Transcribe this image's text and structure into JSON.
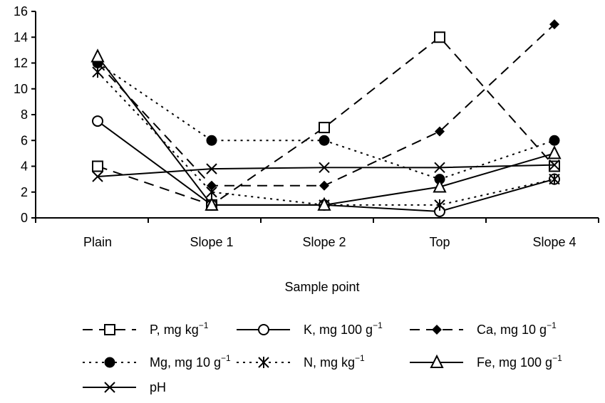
{
  "chart_data": {
    "type": "line",
    "title": "",
    "xlabel": "Sample point",
    "ylabel": "",
    "categories": [
      "Plain",
      "Slope 1",
      "Slope 2",
      "Top",
      "Slope 4"
    ],
    "ylim": [
      0,
      16
    ],
    "yticks": [
      0,
      2,
      4,
      6,
      8,
      10,
      12,
      14,
      16
    ],
    "grid": false,
    "legend_position": "bottom",
    "series": [
      {
        "name": "P, mg kg",
        "sup": "−1",
        "marker": "square-open",
        "line": "dash",
        "values": [
          4,
          1,
          7,
          14,
          4
        ]
      },
      {
        "name": "K, mg 100 g",
        "sup": "−1",
        "marker": "circle-open",
        "line": "solid",
        "values": [
          7.5,
          1,
          1,
          0.5,
          3
        ]
      },
      {
        "name": "Ca, mg 10 g",
        "sup": "−1",
        "marker": "diamond-filled",
        "line": "dash",
        "values": [
          12,
          2.5,
          2.5,
          6.7,
          15
        ]
      },
      {
        "name": "Mg, mg 10 g",
        "sup": "−1",
        "marker": "circle-filled",
        "line": "dot",
        "values": [
          12,
          6,
          6,
          3,
          6
        ]
      },
      {
        "name": "N, mg kg",
        "sup": "−1",
        "marker": "asterisk",
        "line": "dot",
        "values": [
          11.3,
          2,
          1,
          1,
          3
        ]
      },
      {
        "name": "Fe, mg 100 g",
        "sup": "−1",
        "marker": "triangle-open",
        "line": "solid",
        "values": [
          12.5,
          1,
          1,
          2.4,
          5
        ]
      },
      {
        "name": "pH",
        "sup": "",
        "marker": "x",
        "line": "solid",
        "values": [
          3.2,
          3.8,
          3.9,
          3.9,
          4.1
        ]
      }
    ]
  }
}
